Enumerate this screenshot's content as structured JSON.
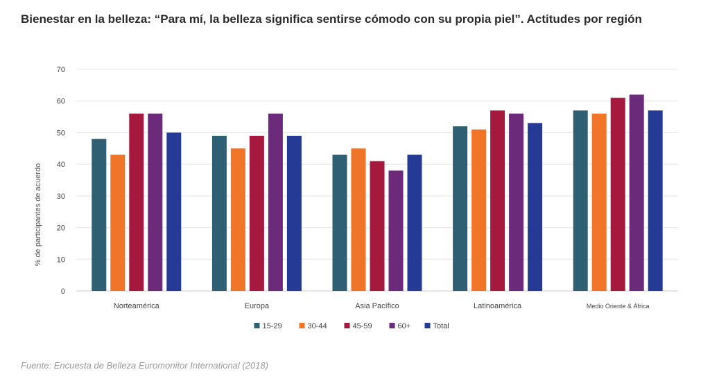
{
  "title": "Bienestar en la belleza: “Para mí, la belleza significa sentirse cómodo con su propia piel”. Actitudes por región",
  "source": "Fuente: Encuesta de Belleza Euromonitor International (2018)",
  "chart_data": {
    "type": "bar",
    "title": "Bienestar en la belleza: “Para mí, la belleza significa sentirse cómodo con su propia piel”. Actitudes por región",
    "ylabel": "% de participantes de acuerdo",
    "xlabel": "",
    "ylim": [
      0,
      70
    ],
    "yticks": [
      0,
      10,
      20,
      30,
      40,
      50,
      60,
      70
    ],
    "grid": true,
    "legend_position": "bottom",
    "categories": [
      "Norteamérica",
      "Europa",
      "Asia Pacífico",
      "Latinoamérica",
      "Medio Oriente & África"
    ],
    "series": [
      {
        "name": "15-29",
        "color": "#2e5f73",
        "values": [
          48,
          49,
          43,
          52,
          57
        ]
      },
      {
        "name": "30-44",
        "color": "#f07528",
        "values": [
          43,
          45,
          45,
          51,
          56
        ]
      },
      {
        "name": "45-59",
        "color": "#a6193f",
        "values": [
          56,
          49,
          41,
          57,
          61
        ]
      },
      {
        "name": "60+",
        "color": "#6b2b7a",
        "values": [
          56,
          56,
          38,
          56,
          62
        ]
      },
      {
        "name": "Total",
        "color": "#253a94",
        "values": [
          50,
          49,
          43,
          53,
          57
        ]
      }
    ]
  }
}
